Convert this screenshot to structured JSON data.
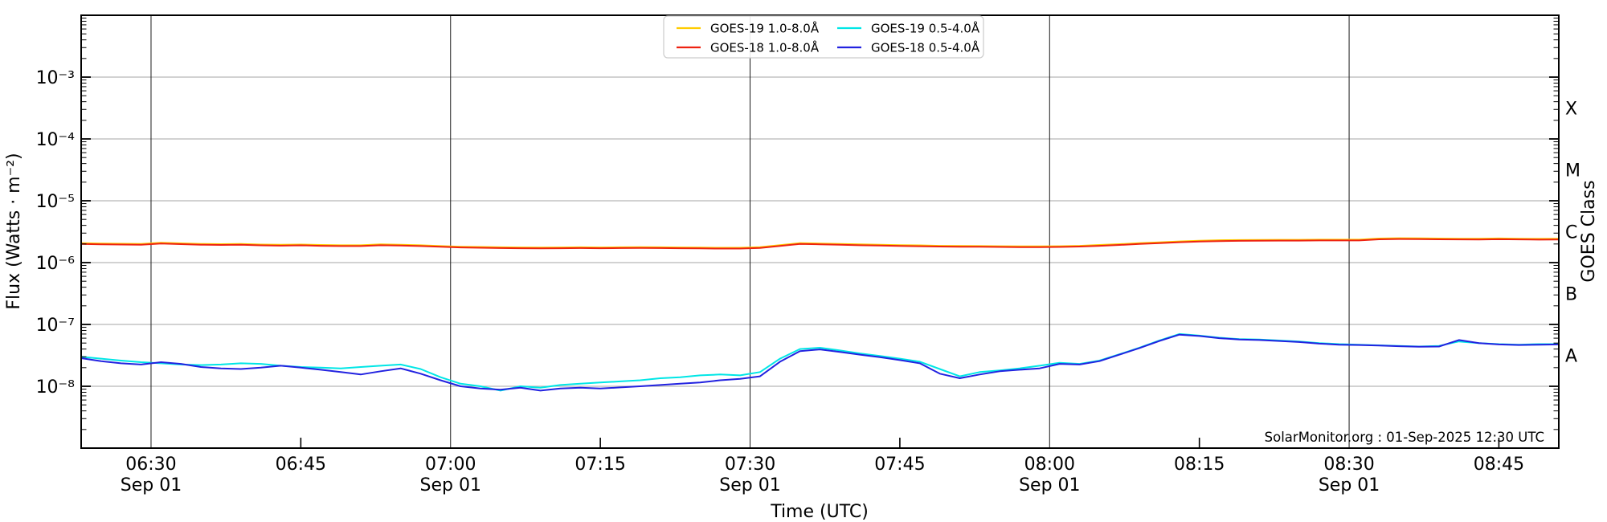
{
  "chart_data": {
    "type": "line",
    "title": "",
    "xlabel": "Time (UTC)",
    "ylabel": "Flux (Watts · m⁻²)",
    "ylabel_right": "GOES Class",
    "annotation": "SolarMonitor.org : 01-Sep-2025 12:30 UTC",
    "x_axis": {
      "unit": "minutes-utc-since-midnight",
      "start_minutes": 383,
      "end_minutes": 531,
      "ticks_major": [
        {
          "minutes": 390,
          "label": "06:30",
          "day": "Sep 01"
        },
        {
          "minutes": 420,
          "label": "07:00",
          "day": "Sep 01"
        },
        {
          "minutes": 450,
          "label": "07:30",
          "day": "Sep 01"
        },
        {
          "minutes": 480,
          "label": "08:00",
          "day": "Sep 01"
        },
        {
          "minutes": 510,
          "label": "08:30",
          "day": "Sep 01"
        }
      ],
      "ticks_minor": [
        {
          "minutes": 405,
          "label": "06:45"
        },
        {
          "minutes": 435,
          "label": "07:15"
        },
        {
          "minutes": 465,
          "label": "07:45"
        },
        {
          "minutes": 495,
          "label": "08:15"
        },
        {
          "minutes": 525,
          "label": "08:45"
        }
      ]
    },
    "y_axis": {
      "scale": "log",
      "ylim": [
        1e-09,
        0.01
      ],
      "grid": true,
      "gridline_color": "#b8b8b8",
      "daylines_color": "#1a1a1a",
      "ticks": [
        {
          "exp": -3,
          "label": "10⁻³"
        },
        {
          "exp": -4,
          "label": "10⁻⁴"
        },
        {
          "exp": -5,
          "label": "10⁻⁵"
        },
        {
          "exp": -6,
          "label": "10⁻⁶"
        },
        {
          "exp": -7,
          "label": "10⁻⁷"
        },
        {
          "exp": -8,
          "label": "10⁻⁸"
        }
      ]
    },
    "right_axis_classes": [
      {
        "label": "X",
        "center_exp": -3.5
      },
      {
        "label": "M",
        "center_exp": -4.5
      },
      {
        "label": "C",
        "center_exp": -5.5
      },
      {
        "label": "B",
        "center_exp": -6.5
      },
      {
        "label": "A",
        "center_exp": -7.5
      }
    ],
    "legend": {
      "position": "top-center",
      "columns": 2
    },
    "x_minutes": [
      383,
      385,
      387,
      389,
      391,
      393,
      395,
      397,
      399,
      401,
      403,
      405,
      407,
      409,
      411,
      413,
      415,
      417,
      419,
      421,
      423,
      425,
      427,
      429,
      431,
      433,
      435,
      437,
      439,
      441,
      443,
      445,
      447,
      449,
      451,
      453,
      455,
      457,
      459,
      461,
      463,
      465,
      467,
      469,
      471,
      473,
      475,
      477,
      479,
      481,
      483,
      485,
      487,
      489,
      491,
      493,
      495,
      497,
      499,
      501,
      503,
      505,
      507,
      509,
      511,
      513,
      515,
      517,
      519,
      521,
      523,
      525,
      527,
      529,
      531
    ],
    "series": [
      {
        "name": "GOES-19 1.0-8.0Å",
        "color": "#ffcc00",
        "scale": 1e-06,
        "values": [
          2.06,
          2.04,
          2.02,
          2.01,
          2.1,
          2.05,
          2.01,
          1.99,
          2.0,
          1.96,
          1.94,
          1.96,
          1.93,
          1.91,
          1.91,
          1.97,
          1.95,
          1.91,
          1.85,
          1.81,
          1.79,
          1.77,
          1.76,
          1.75,
          1.76,
          1.77,
          1.76,
          1.77,
          1.78,
          1.77,
          1.76,
          1.75,
          1.74,
          1.74,
          1.78,
          1.92,
          2.06,
          2.04,
          2.0,
          1.97,
          1.95,
          1.92,
          1.9,
          1.87,
          1.86,
          1.85,
          1.84,
          1.83,
          1.83,
          1.84,
          1.87,
          1.93,
          1.99,
          2.06,
          2.13,
          2.2,
          2.26,
          2.3,
          2.32,
          2.33,
          2.34,
          2.34,
          2.35,
          2.35,
          2.35,
          2.45,
          2.48,
          2.47,
          2.45,
          2.44,
          2.43,
          2.46,
          2.44,
          2.42,
          2.43
        ]
      },
      {
        "name": "GOES-18 1.0-8.0Å",
        "color": "#ee2211",
        "scale": 1e-06,
        "values": [
          2.0,
          1.98,
          1.96,
          1.95,
          2.04,
          1.99,
          1.95,
          1.93,
          1.94,
          1.9,
          1.88,
          1.9,
          1.87,
          1.85,
          1.85,
          1.91,
          1.89,
          1.85,
          1.8,
          1.76,
          1.74,
          1.72,
          1.71,
          1.7,
          1.71,
          1.72,
          1.71,
          1.72,
          1.73,
          1.72,
          1.71,
          1.7,
          1.69,
          1.69,
          1.73,
          1.86,
          2.0,
          1.98,
          1.94,
          1.91,
          1.89,
          1.86,
          1.84,
          1.82,
          1.81,
          1.8,
          1.79,
          1.78,
          1.78,
          1.79,
          1.82,
          1.87,
          1.93,
          2.0,
          2.07,
          2.14,
          2.19,
          2.23,
          2.25,
          2.26,
          2.27,
          2.27,
          2.28,
          2.28,
          2.28,
          2.38,
          2.41,
          2.4,
          2.38,
          2.37,
          2.36,
          2.39,
          2.37,
          2.35,
          2.36
        ]
      },
      {
        "name": "GOES-19 0.5-4.0Å",
        "color": "#00e6e6",
        "scale": 1e-08,
        "values": [
          3.0,
          2.8,
          2.6,
          2.45,
          2.35,
          2.25,
          2.2,
          2.25,
          2.35,
          2.3,
          2.15,
          2.05,
          2.0,
          1.95,
          2.05,
          2.15,
          2.25,
          1.9,
          1.4,
          1.1,
          1.0,
          0.85,
          1.0,
          0.95,
          1.05,
          1.1,
          1.15,
          1.2,
          1.25,
          1.35,
          1.4,
          1.5,
          1.55,
          1.5,
          1.7,
          2.8,
          4.0,
          4.2,
          3.8,
          3.4,
          3.1,
          2.8,
          2.5,
          1.9,
          1.45,
          1.7,
          1.8,
          1.95,
          2.15,
          2.4,
          2.3,
          2.6,
          3.3,
          4.2,
          5.5,
          7.0,
          6.6,
          6.1,
          5.8,
          5.7,
          5.5,
          5.3,
          5.0,
          4.8,
          4.7,
          4.6,
          4.5,
          4.4,
          4.5,
          5.3,
          5.0,
          4.8,
          4.7,
          4.8,
          4.8
        ]
      },
      {
        "name": "GOES-18 0.5-4.0Å",
        "color": "#2222e0",
        "scale": 1e-08,
        "values": [
          2.85,
          2.55,
          2.35,
          2.25,
          2.45,
          2.3,
          2.05,
          1.95,
          1.9,
          2.0,
          2.15,
          2.0,
          1.85,
          1.7,
          1.55,
          1.75,
          1.95,
          1.6,
          1.25,
          1.0,
          0.92,
          0.88,
          0.95,
          0.85,
          0.92,
          0.95,
          0.92,
          0.96,
          1.0,
          1.05,
          1.1,
          1.15,
          1.25,
          1.32,
          1.45,
          2.5,
          3.7,
          3.95,
          3.6,
          3.25,
          2.95,
          2.65,
          2.35,
          1.6,
          1.35,
          1.55,
          1.75,
          1.85,
          1.95,
          2.3,
          2.25,
          2.55,
          3.25,
          4.15,
          5.4,
          6.85,
          6.5,
          6.0,
          5.7,
          5.6,
          5.4,
          5.2,
          4.9,
          4.7,
          4.65,
          4.55,
          4.45,
          4.35,
          4.4,
          5.6,
          5.0,
          4.75,
          4.65,
          4.7,
          4.75
        ]
      }
    ]
  }
}
